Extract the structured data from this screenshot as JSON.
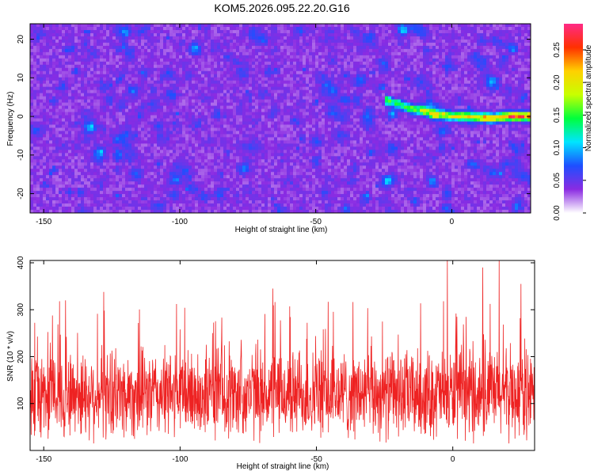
{
  "figure_title": "KOM5.2026.095.22.20.G16",
  "chart_data": [
    {
      "type": "heatmap",
      "xlabel": "Height of straight line (km)",
      "ylabel": "Frequency (Hz)",
      "xlim": [
        -155,
        29
      ],
      "ylim": [
        -25,
        24
      ],
      "xticks": [
        -150,
        -100,
        -50,
        0
      ],
      "yticks": [
        -20,
        -10,
        0,
        10,
        20
      ],
      "colorbar": {
        "label": "Normalized spectral amplitude",
        "range": [
          0,
          0.29
        ],
        "ticks": [
          0,
          0.05,
          0.1,
          0.15,
          0.2,
          0.25
        ],
        "tick_labels": [
          "0.00",
          "0.05",
          "0.10",
          "0.15",
          "0.20",
          "0.25"
        ],
        "colors": [
          "#ffffff",
          "#8a2be2",
          "#1e4fff",
          "#00e5ff",
          "#00ff3c",
          "#c8ff00",
          "#ffd000",
          "#ff3000",
          "#ff2a86"
        ]
      },
      "ridge": {
        "description_values_x": [
          -25,
          -15,
          -5,
          0,
          5,
          15,
          20,
          27
        ],
        "description_values_y": [
          4.5,
          2,
          0.5,
          0,
          0,
          -0.5,
          0,
          0
        ],
        "peak_amplitude": 0.27
      },
      "background_amplitude_range": [
        0.0,
        0.09
      ]
    },
    {
      "type": "line",
      "xlabel": "Height of straight line (km)",
      "ylabel": "SNR (10 * v/v)",
      "xlim": [
        -155,
        30
      ],
      "ylim": [
        0,
        405
      ],
      "xticks": [
        -150,
        -100,
        -50,
        0
      ],
      "yticks": [
        100,
        200,
        300,
        400
      ],
      "color": "#ee2222",
      "x_step_km": 0.1,
      "baseline_mean": 120,
      "baseline_spread": [
        15,
        330
      ],
      "notable_peaks": [
        {
          "x": -142,
          "y": 320
        },
        {
          "x": -128,
          "y": 338
        },
        {
          "x": -66,
          "y": 345
        },
        {
          "x": -2,
          "y": 405
        },
        {
          "x": 11,
          "y": 390
        },
        {
          "x": 17,
          "y": 405
        },
        {
          "x": 25,
          "y": 355
        }
      ]
    }
  ]
}
